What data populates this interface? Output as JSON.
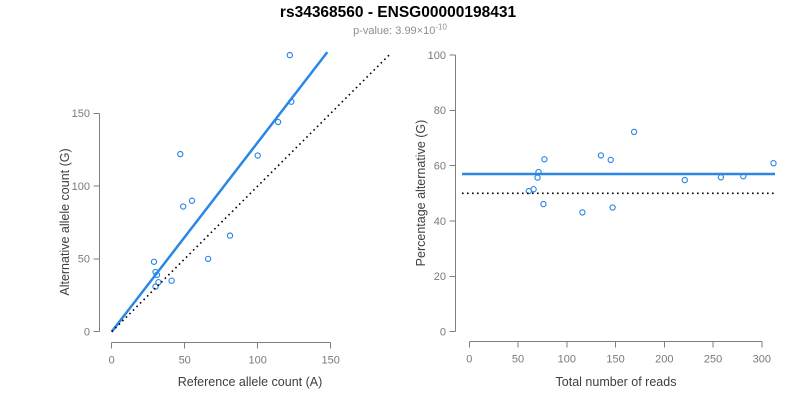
{
  "figure": {
    "title": "rs34368560 - ENSG00000198431",
    "subtitle_main": "p-value: 3.99×10",
    "subtitle_exponent": "-10"
  },
  "colors": {
    "accent_blue": "#2B87E5",
    "line_black": "#000000",
    "axis_gray": "#7f7f7f",
    "tick_label_gray": "#7a7a7a",
    "axis_title_gray": "#3f3f3f",
    "subtitle_gray": "#8f8f8f",
    "background": "#ffffff"
  },
  "chart_data": [
    {
      "id": "allele-count-scatter",
      "type": "scatter",
      "xlabel": "Reference allele count (A)",
      "ylabel": "Alternative allele count (G)",
      "xlim": [
        0,
        190
      ],
      "ylim": [
        0,
        192
      ],
      "xticks": [
        0,
        50,
        100,
        150
      ],
      "yticks": [
        0,
        50,
        100,
        150
      ],
      "grid": false,
      "legend": null,
      "point_color": "#2B87E5",
      "points": [
        [
          29,
          48
        ],
        [
          30,
          41
        ],
        [
          31,
          39
        ],
        [
          30,
          31
        ],
        [
          32,
          34
        ],
        [
          41,
          35
        ],
        [
          47,
          122
        ],
        [
          49,
          86
        ],
        [
          55,
          90
        ],
        [
          66,
          50
        ],
        [
          81,
          66
        ],
        [
          100,
          121
        ],
        [
          114,
          144
        ],
        [
          123,
          158
        ],
        [
          122,
          190
        ]
      ],
      "lines": [
        {
          "name": "fit-line",
          "style": "solid",
          "slope": 1.3,
          "intercept": 0,
          "color": "#2B87E5"
        },
        {
          "name": "identity-line",
          "style": "dotted",
          "slope": 1,
          "intercept": 0,
          "color": "#000000"
        }
      ]
    },
    {
      "id": "percentage-vs-reads-scatter",
      "type": "scatter",
      "xlabel": "Total number of reads",
      "ylabel": "Percentage alternative (G)",
      "xlim": [
        0,
        315
      ],
      "ylim": [
        0,
        100
      ],
      "xticks": [
        0,
        50,
        100,
        150,
        200,
        250,
        300
      ],
      "yticks": [
        0,
        20,
        40,
        60,
        80,
        100
      ],
      "grid": false,
      "legend": null,
      "point_color": "#2B87E5",
      "points": [
        [
          77,
          62.3
        ],
        [
          71,
          57.7
        ],
        [
          70,
          55.7
        ],
        [
          61,
          50.8
        ],
        [
          66,
          51.5
        ],
        [
          76,
          46.1
        ],
        [
          169,
          72.2
        ],
        [
          135,
          63.7
        ],
        [
          145,
          62.1
        ],
        [
          116,
          43.1
        ],
        [
          147,
          44.9
        ],
        [
          221,
          54.8
        ],
        [
          258,
          55.8
        ],
        [
          281,
          56.2
        ],
        [
          312,
          60.9
        ]
      ],
      "lines": [
        {
          "name": "mean-line",
          "style": "solid",
          "y": 57,
          "color": "#2B87E5"
        },
        {
          "name": "null-line",
          "style": "dotted",
          "y": 50,
          "color": "#000000"
        }
      ]
    }
  ]
}
